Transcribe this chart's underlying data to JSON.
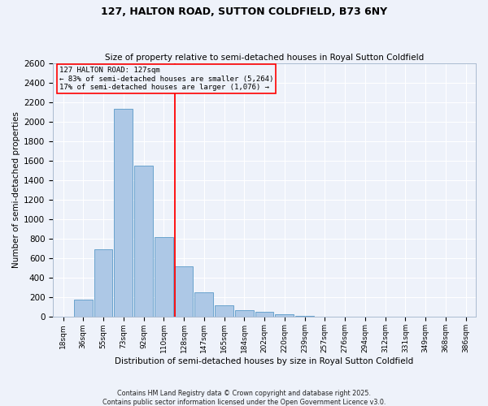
{
  "title": "127, HALTON ROAD, SUTTON COLDFIELD, B73 6NY",
  "subtitle": "Size of property relative to semi-detached houses in Royal Sutton Coldfield",
  "xlabel": "Distribution of semi-detached houses by size in Royal Sutton Coldfield",
  "ylabel": "Number of semi-detached properties",
  "footnote1": "Contains HM Land Registry data © Crown copyright and database right 2025.",
  "footnote2": "Contains public sector information licensed under the Open Government Licence v3.0.",
  "annotation_line1": "127 HALTON ROAD: 127sqm",
  "annotation_line2": "← 83% of semi-detached houses are smaller (5,264)",
  "annotation_line3": "17% of semi-detached houses are larger (1,076) →",
  "bar_color": "#adc8e6",
  "bar_edge_color": "#5a9ac8",
  "vline_color": "red",
  "background_color": "#eef2fa",
  "grid_color": "#ffffff",
  "categories": [
    "18sqm",
    "36sqm",
    "55sqm",
    "73sqm",
    "92sqm",
    "110sqm",
    "128sqm",
    "147sqm",
    "165sqm",
    "184sqm",
    "202sqm",
    "220sqm",
    "239sqm",
    "257sqm",
    "276sqm",
    "294sqm",
    "312sqm",
    "331sqm",
    "349sqm",
    "368sqm",
    "386sqm"
  ],
  "values": [
    5,
    175,
    690,
    2130,
    1550,
    820,
    515,
    250,
    120,
    70,
    55,
    25,
    10,
    5,
    2,
    2,
    0,
    0,
    5,
    0,
    0
  ],
  "ylim": [
    0,
    2600
  ],
  "yticks": [
    0,
    200,
    400,
    600,
    800,
    1000,
    1200,
    1400,
    1600,
    1800,
    2000,
    2200,
    2400,
    2600
  ]
}
